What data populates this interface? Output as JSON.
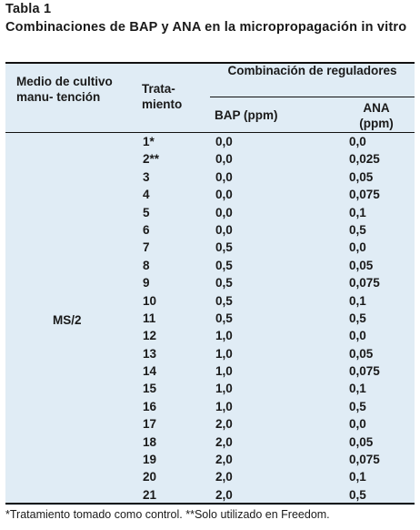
{
  "title": "Tabla 1",
  "subtitle": "Combinaciones de BAP y ANA en la micropropagación in vitro",
  "headers": {
    "medio": "Medio de cultivo manu- tención",
    "tratamiento": "Trata- miento",
    "combinacion": "Combinación de reguladores",
    "bap": "BAP (ppm)",
    "ana": "ANA (ppm)"
  },
  "medio_value": "MS/2",
  "rows": [
    {
      "trat": "1*",
      "bap": "0,0",
      "ana": "0,0"
    },
    {
      "trat": "2**",
      "bap": "0,0",
      "ana": "0,025"
    },
    {
      "trat": "3",
      "bap": "0,0",
      "ana": "0,05"
    },
    {
      "trat": "4",
      "bap": "0,0",
      "ana": "0,075"
    },
    {
      "trat": "5",
      "bap": "0,0",
      "ana": "0,1"
    },
    {
      "trat": "6",
      "bap": "0,0",
      "ana": "0,5"
    },
    {
      "trat": "7",
      "bap": "0,5",
      "ana": "0,0"
    },
    {
      "trat": "8",
      "bap": "0,5",
      "ana": "0,05"
    },
    {
      "trat": "9",
      "bap": "0,5",
      "ana": "0,075"
    },
    {
      "trat": "10",
      "bap": "0,5",
      "ana": "0,1"
    },
    {
      "trat": "11",
      "bap": "0,5",
      "ana": "0,5"
    },
    {
      "trat": "12",
      "bap": "1,0",
      "ana": "0,0"
    },
    {
      "trat": "13",
      "bap": "1,0",
      "ana": "0,05"
    },
    {
      "trat": "14",
      "bap": "1,0",
      "ana": "0,075"
    },
    {
      "trat": "15",
      "bap": "1,0",
      "ana": "0,1"
    },
    {
      "trat": "16",
      "bap": "1,0",
      "ana": "0,5"
    },
    {
      "trat": "17",
      "bap": "2,0",
      "ana": "0,0"
    },
    {
      "trat": "18",
      "bap": "2,0",
      "ana": "0,05"
    },
    {
      "trat": "19",
      "bap": "2,0",
      "ana": "0,075"
    },
    {
      "trat": "20",
      "bap": "2,0",
      "ana": "0,1"
    },
    {
      "trat": "21",
      "bap": "2,0",
      "ana": "0,5"
    }
  ],
  "footnote": "*Tratamiento tomado como control. **Solo utilizado en Freedom."
}
